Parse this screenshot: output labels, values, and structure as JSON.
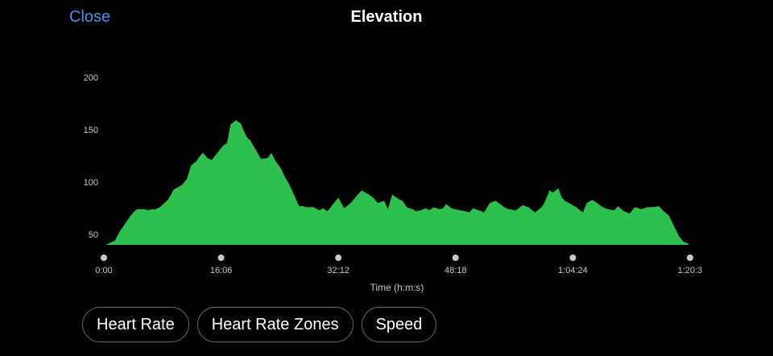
{
  "header": {
    "close_label": "Close",
    "title": "Elevation"
  },
  "colors": {
    "background": "#000000",
    "area_fill": "#2ec04e",
    "link": "#4a90e2",
    "tick_dot": "#c8c8c8"
  },
  "metric_tabs": [
    {
      "label": "Heart Rate"
    },
    {
      "label": "Heart Rate Zones"
    },
    {
      "label": "Speed"
    }
  ],
  "chart_data": {
    "type": "area",
    "xlabel": "Time (h:m:s)",
    "ylabel": "",
    "ylim": [
      40,
      200
    ],
    "y_ticks": [
      50,
      100,
      150,
      200
    ],
    "x_tick_labels": [
      "0:00",
      "16:06",
      "32:12",
      "48:18",
      "1:04:24",
      "1:20:3"
    ],
    "x_tick_minutes": [
      0,
      16.1,
      32.2,
      48.3,
      64.4,
      80.5
    ],
    "xlim_minutes": [
      0,
      80.5
    ],
    "grid": false,
    "series": [
      {
        "x_minutes": [
          0.2,
          0.9,
          1.5,
          2.2,
          3.1,
          3.9,
          4.5,
          5.6,
          6.1,
          6.6,
          7.1,
          7.7,
          8.8,
          9.6,
          10.7,
          11.4,
          12.0,
          12.7,
          13.1,
          13.6,
          14.2,
          14.8,
          15.6,
          16.4,
          16.9,
          17.4,
          18.1,
          18.8,
          19.2,
          19.7,
          20.1,
          20.5,
          21.1,
          21.6,
          22.5,
          23.0,
          23.5,
          24.3,
          25.0,
          25.3,
          26.3,
          26.8,
          27.3,
          27.8,
          28.8,
          29.6,
          30.1,
          30.7,
          31.6,
          32.2,
          33.0,
          33.9,
          34.5,
          35.4,
          35.9,
          36.4,
          37.0,
          37.6,
          38.5,
          39.0,
          39.6,
          40.4,
          41.0,
          41.6,
          42.4,
          42.9,
          43.5,
          44.2,
          44.7,
          45.3,
          46.1,
          46.6,
          47.0,
          47.7,
          48.2,
          48.9,
          49.7,
          50.2,
          50.7,
          51.5,
          52.2,
          53.0,
          53.8,
          54.4,
          55.0,
          55.6,
          56.6,
          57.5,
          58.3,
          59.2,
          60.1,
          60.5,
          61.2,
          61.7,
          62.4,
          62.9,
          63.3,
          64.1,
          64.9,
          65.2,
          65.8,
          66.3,
          67.1,
          67.9,
          68.5,
          69.2,
          70.1,
          70.6,
          71.4,
          72.2,
          72.9,
          73.8,
          74.6,
          75.5,
          76.2,
          76.9,
          77.6,
          78.5,
          79.0,
          79.6,
          80.3
        ],
        "y": [
          40,
          42,
          44,
          53,
          62,
          70,
          74,
          74,
          73,
          74,
          74,
          76,
          83,
          93,
          97,
          103,
          116,
          120,
          124,
          128,
          123,
          121,
          128,
          135,
          137,
          155,
          159,
          156,
          149,
          142,
          140,
          135,
          128,
          122,
          123,
          128,
          121,
          113,
          103,
          100,
          85,
          77,
          77,
          76,
          76,
          73,
          75,
          72,
          80,
          85,
          75,
          80,
          85,
          92,
          90,
          88,
          85,
          80,
          82,
          74,
          88,
          84,
          82,
          76,
          74,
          72,
          73,
          75,
          73,
          76,
          74,
          75,
          79,
          75,
          74,
          73,
          72,
          71,
          75,
          73,
          71,
          80,
          82,
          79,
          76,
          74,
          73,
          78,
          76,
          71,
          76,
          80,
          92,
          90,
          94,
          85,
          82,
          79,
          76,
          74,
          71,
          80,
          83,
          79,
          76,
          74,
          73,
          77,
          72,
          70,
          76,
          74,
          76,
          76,
          77,
          72,
          68,
          55,
          48,
          43,
          41
        ]
      }
    ]
  }
}
